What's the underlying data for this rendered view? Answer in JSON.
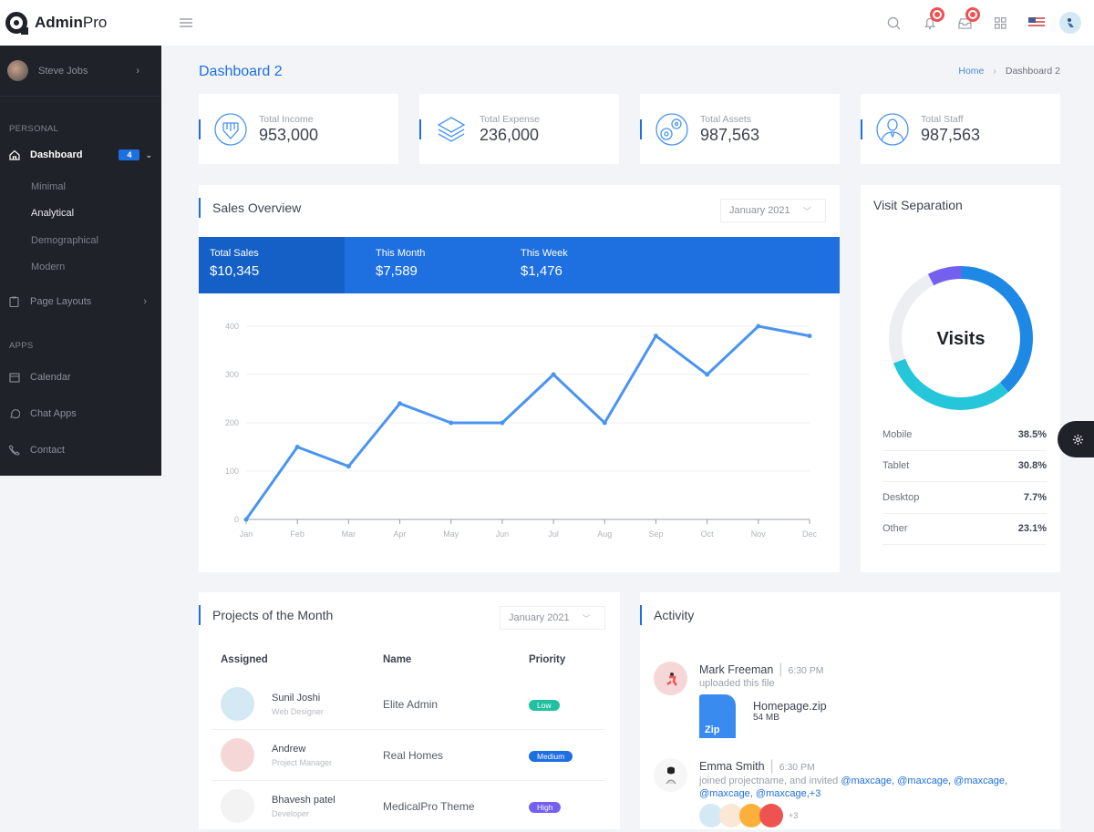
{
  "brand": {
    "name_bold": "Admin",
    "name_light": "Pro"
  },
  "topbar": {
    "icons": [
      "search-icon",
      "bell-icon",
      "inbox-icon",
      "apps-grid-icon",
      "us-flag-icon",
      "user-avatar"
    ]
  },
  "sidebar": {
    "user": {
      "name": "Steve Jobs"
    },
    "sections": [
      {
        "label": "PERSONAL"
      },
      {
        "label": "APPS"
      }
    ],
    "dashboard": {
      "label": "Dashboard",
      "badge": "4",
      "subitems": [
        "Minimal",
        "Analytical",
        "Demographical",
        "Modern"
      ],
      "active_sub": "Analytical"
    },
    "page_layouts": {
      "label": "Page Layouts"
    },
    "apps": [
      {
        "label": "Calendar"
      },
      {
        "label": "Chat Apps"
      },
      {
        "label": "Contact"
      }
    ]
  },
  "page": {
    "title": "Dashboard 2",
    "breadcrumb": {
      "home": "Home",
      "current": "Dashboard 2"
    }
  },
  "stats": [
    {
      "label": "Total Income",
      "value": "953,000"
    },
    {
      "label": "Total Expense",
      "value": "236,000"
    },
    {
      "label": "Total Assets",
      "value": "987,563"
    },
    {
      "label": "Total Staff",
      "value": "987,563"
    }
  ],
  "sales": {
    "title": "Sales Overview",
    "select": "January 2021",
    "band": [
      {
        "label": "Total Sales",
        "value": "$10,345"
      },
      {
        "label": "This Month",
        "value": "$7,589"
      },
      {
        "label": "This Week",
        "value": "$1,476"
      }
    ],
    "line_color": "#4a94f0"
  },
  "chart_data": {
    "type": "line",
    "title": "Sales Overview",
    "categories": [
      "Jan",
      "Feb",
      "Mar",
      "Apr",
      "May",
      "Jun",
      "Jul",
      "Aug",
      "Sep",
      "Oct",
      "Nov",
      "Dec"
    ],
    "values": [
      0,
      150,
      110,
      240,
      200,
      200,
      300,
      200,
      380,
      300,
      400,
      380
    ],
    "yticks": [
      0,
      100,
      200,
      300,
      400
    ],
    "ylim": [
      0,
      400
    ],
    "xlabel": "",
    "ylabel": "",
    "grid": true
  },
  "visits": {
    "title": "Visit Separation",
    "center_label": "Visits",
    "rows": [
      {
        "label": "Mobile",
        "pct": "38.5%",
        "color": "#1e88e5"
      },
      {
        "label": "Tablet",
        "pct": "30.8%",
        "color": "#26c6da"
      },
      {
        "label": "Desktop",
        "pct": "7.7%",
        "color": "#7460ee"
      },
      {
        "label": "Other",
        "pct": "23.1%",
        "color": "#eceef2"
      }
    ]
  },
  "projects": {
    "title": "Projects of the Month",
    "select": "January 2021",
    "headers": [
      "Assigned",
      "Name",
      "Priority"
    ],
    "rows": [
      {
        "name": "Sunil Joshi",
        "role": "Web Designer",
        "project": "Elite Admin",
        "priority": "Low",
        "color": "#21c1a0",
        "avbg": "#d4e9f4"
      },
      {
        "name": "Andrew",
        "role": "Project Manager",
        "project": "Real Homes",
        "priority": "Medium",
        "color": "#1e6fe0",
        "avbg": "#f6d7d7"
      },
      {
        "name": "Bhavesh patel",
        "role": "Developer",
        "project": "MedicalPro Theme",
        "priority": "High",
        "color": "#7460ee",
        "avbg": "#f3f3f3"
      }
    ]
  },
  "activity": {
    "title": "Activity",
    "items": [
      {
        "name": "Mark Freeman",
        "time": "6:30 PM",
        "desc": "uploaded this file",
        "file": {
          "name": "Homepage.zip",
          "size": "54 MB",
          "type": "Zip"
        }
      },
      {
        "name": "Emma Smith",
        "time": "6:30 PM",
        "desc": "joined projectname, and invited",
        "mentions": "@maxcage, @maxcage, @maxcage,",
        "mentions2": "@maxcage, @maxcage,+3",
        "more": "+3"
      }
    ]
  }
}
